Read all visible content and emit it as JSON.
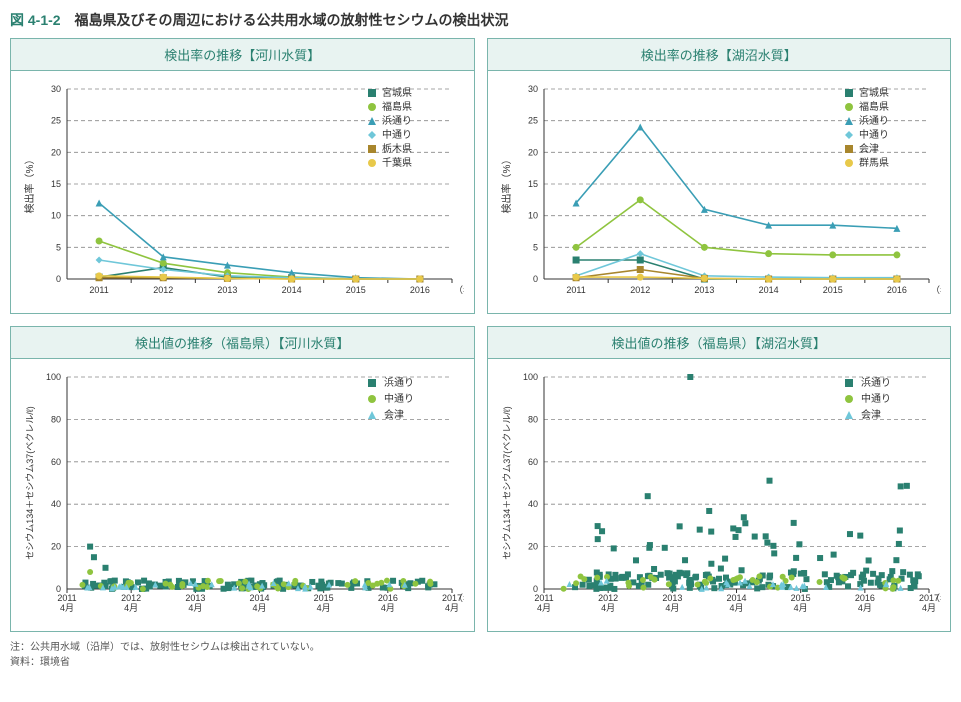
{
  "title_number": "図 4-1-2",
  "title_text": "福島県及びその周辺における公共用水域の放射性セシウムの検出状況",
  "footnote_1": "注：公共用水域（沿岸）では、放射性セシウムは検出されていない。",
  "footnote_2": "資料：環境省",
  "colors": {
    "miyagi": "#2a8070",
    "fukushima": "#8fc43f",
    "hamadori": "#3a9eb5",
    "nakadori": "#6fc7d9",
    "tochigi": "#a8862d",
    "chiba": "#e8c94a",
    "aizu_brown": "#a8862d",
    "gunma": "#e8c94a",
    "aizu_tri": "#6fc7d9",
    "panel_border": "#7ab5ac",
    "panel_bg": "#e8f3f1"
  },
  "top_charts": {
    "ylabel": "検出率（%）",
    "xlabel": "（年度）",
    "ylim": [
      0,
      30
    ],
    "ytick_step": 5,
    "x_categories": [
      "2011",
      "2012",
      "2013",
      "2014",
      "2015",
      "2016"
    ]
  },
  "bottom_charts": {
    "ylabel": "セシウム134＋セシウム37(ベクレル/ℓ)",
    "xlabel": "（年）",
    "ylim": [
      0,
      100
    ],
    "ytick_step": 20,
    "x_labels": [
      "2011\n4月",
      "2012\n4月",
      "2013\n4月",
      "2014\n4月",
      "2015\n4月",
      "2016\n4月",
      "2017\n4月"
    ]
  },
  "panel_a": {
    "title": "検出率の推移【河川水質】",
    "legend": [
      "宮城県",
      "福島県",
      "浜通り",
      "中通り",
      "栃木県",
      "千葉県"
    ],
    "series": {
      "miyagi": [
        0.3,
        1.8,
        0.3,
        0.2,
        0,
        0
      ],
      "fukushima": [
        6,
        2.5,
        1,
        0.3,
        0,
        0
      ],
      "hamadori": [
        12,
        3.5,
        2.2,
        1,
        0.2,
        0
      ],
      "nakadori": [
        3,
        1.5,
        0.5,
        0.2,
        0,
        0
      ],
      "tochigi": [
        0.2,
        0.2,
        0.1,
        0,
        0,
        0
      ],
      "chiba": [
        0.5,
        0.3,
        0.1,
        0,
        0,
        0
      ]
    }
  },
  "panel_b": {
    "title": "検出率の推移【湖沼水質】",
    "legend": [
      "宮城県",
      "福島県",
      "浜通り",
      "中通り",
      "会津",
      "群馬県"
    ],
    "series": {
      "miyagi": [
        3,
        3,
        0,
        0,
        0,
        0
      ],
      "fukushima": [
        5,
        12.5,
        5,
        4,
        3.8,
        3.8
      ],
      "hamadori": [
        12,
        24,
        11,
        8.5,
        8.5,
        8
      ],
      "nakadori": [
        0.5,
        4,
        0.5,
        0.3,
        0.2,
        0.2
      ],
      "aizu": [
        0.2,
        1.5,
        0.1,
        0,
        0,
        0
      ],
      "gunma": [
        0.3,
        0.3,
        0.1,
        0,
        0,
        0
      ]
    }
  },
  "panel_c": {
    "title": "検出値の推移（福島県）【河川水質】",
    "legend": [
      "浜通り",
      "中通り",
      "会津"
    ],
    "comment": "scatter — hamadori squares, nakadori circles, aizu triangles; most <5, a few 10-20 early 2011-2012"
  },
  "panel_d": {
    "title": "検出値の推移（福島県）【湖沼水質】",
    "legend": [
      "浜通り",
      "中通り",
      "会津"
    ],
    "comment": "scatter — many hamadori squares 5-60 range, one ~100 mid-2013"
  }
}
